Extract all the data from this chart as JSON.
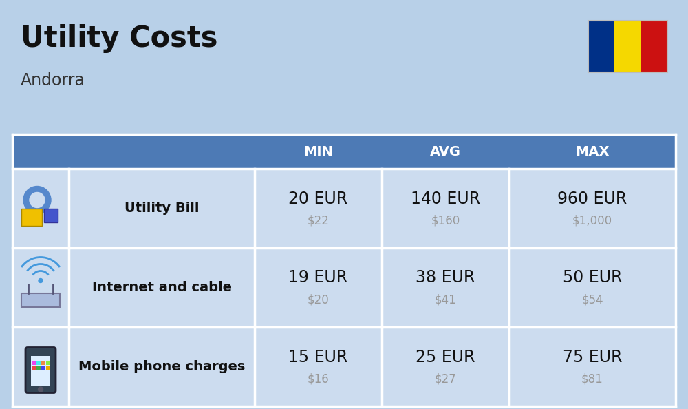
{
  "title": "Utility Costs",
  "subtitle": "Andorra",
  "background_color": "#b8d0e8",
  "header_color": "#4d7ab5",
  "header_text_color": "#ffffff",
  "row_color": "#ccdcef",
  "border_color": "#ffffff",
  "cell_text_color": "#111111",
  "usd_text_color": "#999999",
  "col_headers": [
    "MIN",
    "AVG",
    "MAX"
  ],
  "rows": [
    {
      "label": "Utility Bill",
      "icon": "utility",
      "eur": [
        "20 EUR",
        "140 EUR",
        "960 EUR"
      ],
      "usd": [
        "$22",
        "$160",
        "$1,000"
      ]
    },
    {
      "label": "Internet and cable",
      "icon": "internet",
      "eur": [
        "19 EUR",
        "38 EUR",
        "50 EUR"
      ],
      "usd": [
        "$20",
        "$41",
        "$54"
      ]
    },
    {
      "label": "Mobile phone charges",
      "icon": "mobile",
      "eur": [
        "15 EUR",
        "25 EUR",
        "75 EUR"
      ],
      "usd": [
        "$16",
        "$27",
        "$81"
      ]
    }
  ],
  "flag_colors": [
    "#003087",
    "#f5d800",
    "#cc1111"
  ],
  "title_fontsize": 30,
  "subtitle_fontsize": 17,
  "header_fontsize": 14,
  "label_fontsize": 14,
  "value_fontsize": 17,
  "usd_fontsize": 12
}
